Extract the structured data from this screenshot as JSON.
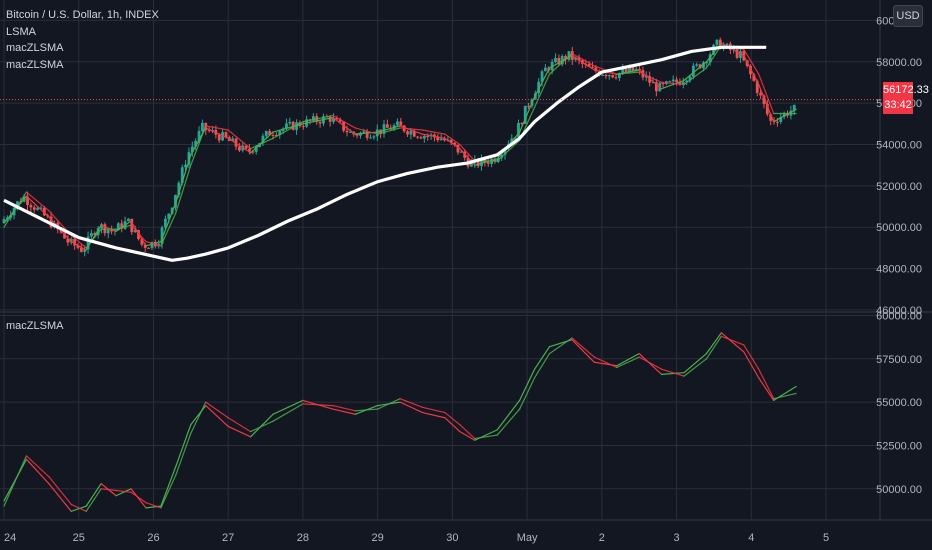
{
  "legend": {
    "title": "Bitcoin / U.S. Dollar, 1h, INDEX",
    "items": [
      "LSMA",
      "macZLSMA",
      "macZLSMA"
    ]
  },
  "pane2_label": "macZLSMA",
  "price_tag": {
    "price": "56172.33",
    "countdown": "33:42"
  },
  "currency_badge": "USD",
  "colors": {
    "background": "#131722",
    "up": "#26a69a",
    "down": "#ef5350",
    "lsma": "#ffffff",
    "zlsma_green": "#4caf50",
    "zlsma_red": "#f23645",
    "grid": "#2a2e39",
    "axis_text": "#b2b5be"
  },
  "chart_data": [
    {
      "type": "candlestick",
      "title": "Bitcoin / U.S. Dollar, 1h, INDEX",
      "x_tick_labels": [
        "24",
        "25",
        "26",
        "27",
        "28",
        "29",
        "30",
        "May",
        "2",
        "3",
        "4",
        "5"
      ],
      "y_ticks": [
        46000,
        48000,
        50000,
        52000,
        54000,
        56000,
        58000,
        60000
      ],
      "ylim": [
        45900,
        60600
      ],
      "last_price": 56172.33,
      "series": [
        {
          "name": "LSMA",
          "x": [
            24.0,
            24.5,
            25.0,
            25.5,
            26.0,
            26.25,
            26.45,
            26.7,
            27.0,
            27.4,
            27.8,
            28.2,
            28.6,
            29.0,
            29.4,
            29.8,
            30.2,
            30.6,
            30.9,
            31.1,
            31.4,
            31.7,
            32.0,
            32.4,
            32.8,
            33.2,
            33.6,
            33.8,
            34.2
          ],
          "values": [
            51300,
            50400,
            49500,
            49000,
            48600,
            48400,
            48500,
            48700,
            49000,
            49600,
            50300,
            50900,
            51600,
            52200,
            52600,
            52900,
            53100,
            53500,
            54300,
            55100,
            56000,
            56800,
            57500,
            57800,
            58100,
            58500,
            58700,
            58700,
            58700
          ]
        },
        {
          "name": "macZLSMA",
          "x": [
            24.0,
            24.3,
            24.6,
            24.9,
            25.1,
            25.3,
            25.5,
            25.7,
            25.9,
            26.1,
            26.3,
            26.5,
            26.7,
            27.0,
            27.3,
            27.6,
            28.0,
            28.4,
            28.7,
            29.0,
            29.3,
            29.6,
            29.9,
            30.1,
            30.3,
            30.6,
            30.9,
            31.1,
            31.3,
            31.6,
            31.9,
            32.2,
            32.5,
            32.8,
            33.1,
            33.4,
            33.6,
            33.9,
            34.1,
            34.3,
            34.6
          ],
          "values": [
            50200,
            51500,
            50500,
            49300,
            48900,
            50100,
            49800,
            50300,
            49100,
            49300,
            51200,
            53500,
            54800,
            54300,
            53600,
            54600,
            55000,
            55300,
            54500,
            54600,
            54900,
            54500,
            54300,
            53800,
            53000,
            53300,
            54600,
            56300,
            57700,
            58300,
            57600,
            57400,
            57600,
            56700,
            57100,
            58000,
            58900,
            58300,
            56900,
            55100,
            55700
          ]
        },
        {
          "name": "macZLSMA",
          "x": [
            24.0,
            24.3,
            24.6,
            24.9,
            25.1,
            25.3,
            25.5,
            25.7,
            25.9,
            26.1,
            26.3,
            26.5,
            26.7,
            27.0,
            27.3,
            27.6,
            28.0,
            28.4,
            28.7,
            29.0,
            29.3,
            29.6,
            29.9,
            30.1,
            30.3,
            30.6,
            30.9,
            31.1,
            31.3,
            31.6,
            31.9,
            32.2,
            32.5,
            32.8,
            33.1,
            33.4,
            33.6,
            33.9,
            34.1,
            34.3,
            34.6
          ],
          "values": [
            50000,
            51700,
            50800,
            49600,
            49000,
            49900,
            49900,
            50100,
            49300,
            49100,
            50700,
            53000,
            54900,
            54700,
            53800,
            54300,
            55100,
            55400,
            54800,
            54500,
            54800,
            54700,
            54500,
            54000,
            53200,
            53200,
            54200,
            55800,
            57400,
            58400,
            57800,
            57400,
            57500,
            57000,
            56900,
            57700,
            58800,
            58600,
            57400,
            55500,
            55500
          ]
        }
      ]
    },
    {
      "type": "line",
      "title": "macZLSMA",
      "x_tick_labels": [
        "24",
        "25",
        "26",
        "27",
        "28",
        "29",
        "30",
        "May",
        "2",
        "3",
        "4",
        "5"
      ],
      "y_ticks": [
        50000,
        52500,
        55000,
        57500,
        60000
      ],
      "ylim": [
        48200,
        60200
      ],
      "series": [
        {
          "name": "macZLSMA",
          "x": [
            24.0,
            24.3,
            24.6,
            24.9,
            25.1,
            25.3,
            25.5,
            25.7,
            25.9,
            26.1,
            26.3,
            26.5,
            26.7,
            27.0,
            27.3,
            27.6,
            28.0,
            28.4,
            28.7,
            29.0,
            29.3,
            29.6,
            29.9,
            30.1,
            30.3,
            30.6,
            30.9,
            31.1,
            31.3,
            31.6,
            31.9,
            32.2,
            32.5,
            32.8,
            33.1,
            33.4,
            33.6,
            33.9,
            34.1,
            34.3,
            34.6
          ],
          "values": [
            49300,
            51700,
            50300,
            48700,
            49000,
            50300,
            49600,
            50000,
            48900,
            49000,
            51300,
            53700,
            54800,
            53600,
            53000,
            54300,
            55100,
            54600,
            54300,
            54800,
            55000,
            54400,
            54100,
            53300,
            52800,
            53400,
            55100,
            56900,
            58200,
            58600,
            57300,
            57100,
            57800,
            56600,
            56700,
            57800,
            59000,
            57900,
            56400,
            55100,
            55900
          ]
        },
        {
          "name": "macZLSMA",
          "x": [
            24.0,
            24.3,
            24.6,
            24.9,
            25.1,
            25.3,
            25.5,
            25.7,
            25.9,
            26.1,
            26.3,
            26.5,
            26.7,
            27.0,
            27.3,
            27.6,
            28.0,
            28.4,
            28.7,
            29.0,
            29.3,
            29.6,
            29.9,
            30.1,
            30.3,
            30.6,
            30.9,
            31.1,
            31.3,
            31.6,
            31.9,
            32.2,
            32.5,
            32.8,
            33.1,
            33.4,
            33.6,
            33.9,
            34.1,
            34.3,
            34.6
          ],
          "values": [
            49000,
            51900,
            50700,
            49100,
            48700,
            50000,
            49900,
            49800,
            49200,
            48900,
            50800,
            53200,
            55000,
            54100,
            53300,
            53900,
            54900,
            54800,
            54500,
            54600,
            55200,
            54700,
            54400,
            53700,
            52900,
            53100,
            54600,
            56400,
            57800,
            58700,
            57600,
            57000,
            57600,
            56900,
            56500,
            57500,
            58800,
            58300,
            56900,
            55200,
            55500
          ]
        }
      ]
    }
  ]
}
